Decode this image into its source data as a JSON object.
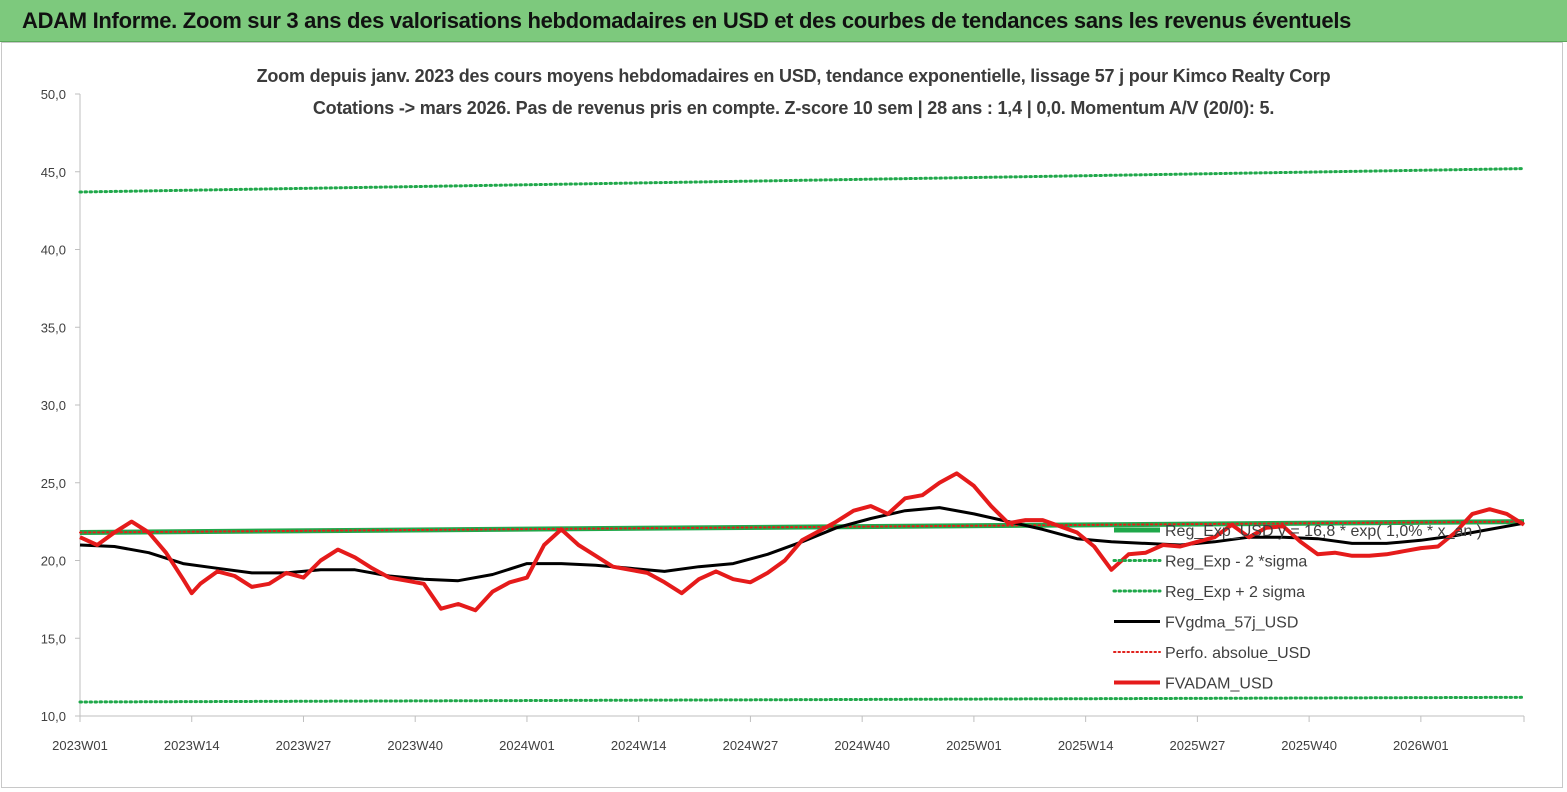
{
  "banner": {
    "title": "ADAM Informe. Zoom sur 3 ans des valorisations hebdomadaires en USD et des courbes de tendances sans les revenus éventuels"
  },
  "colors": {
    "banner_bg": "#7dc97d",
    "reg_exp": "#1fa84a",
    "band": "#1fa84a",
    "fvgdma": "#000000",
    "perfo": "#e0201b",
    "fvadam": "#e51b1b"
  },
  "chart_data": {
    "type": "line",
    "title": "Zoom depuis janv. 2023 des cours moyens hebdomadaires en USD, tendance exponentielle, lissage 57 j pour Kimco Realty Corp",
    "subtitle": "Cotations -> mars 2026. Pas de revenus pris en compte. Z-score 10 sem  | 28 ans : 1,4 | 0,0. Momentum A/V (20/0): 5.",
    "xlabel": "",
    "ylabel": "",
    "ylim": [
      10,
      50
    ],
    "yticks": [
      "10,0",
      "15,0",
      "20,0",
      "25,0",
      "30,0",
      "35,0",
      "40,0",
      "45,0",
      "50,0"
    ],
    "x_range_weeks": [
      0,
      168
    ],
    "xticks": [
      {
        "label": "2023W01",
        "week": 0
      },
      {
        "label": "2023W14",
        "week": 13
      },
      {
        "label": "2023W27",
        "week": 26
      },
      {
        "label": "2023W40",
        "week": 39
      },
      {
        "label": "2024W01",
        "week": 52
      },
      {
        "label": "2024W14",
        "week": 65
      },
      {
        "label": "2024W27",
        "week": 78
      },
      {
        "label": "2024W40",
        "week": 91
      },
      {
        "label": "2025W01",
        "week": 104
      },
      {
        "label": "2025W14",
        "week": 117
      },
      {
        "label": "2025W27",
        "week": 130
      },
      {
        "label": "2025W40",
        "week": 143
      },
      {
        "label": "2026W01",
        "week": 156
      }
    ],
    "grid": false,
    "legend_position": "right",
    "series": [
      {
        "name": "Reg_Exp_USD y = 16,8 * exp( 1,0% * x_an )",
        "style": "solid-thick",
        "weeks": [
          0,
          168
        ],
        "values": [
          21.8,
          22.5
        ]
      },
      {
        "name": "Reg_Exp - 2 *sigma",
        "style": "dotted",
        "weeks": [
          0,
          168
        ],
        "values": [
          10.9,
          11.2
        ]
      },
      {
        "name": "Reg_Exp + 2 sigma",
        "style": "dotted",
        "weeks": [
          0,
          168
        ],
        "values": [
          43.7,
          45.2
        ]
      },
      {
        "name": "FVgdma_57j_USD",
        "style": "solid",
        "weeks": [
          0,
          4,
          8,
          12,
          16,
          20,
          24,
          28,
          32,
          36,
          40,
          44,
          48,
          52,
          56,
          60,
          64,
          68,
          72,
          76,
          80,
          84,
          88,
          92,
          96,
          100,
          104,
          108,
          112,
          116,
          120,
          124,
          128,
          132,
          136,
          140,
          144,
          148,
          152,
          156,
          160,
          164,
          168
        ],
        "values": [
          21.0,
          20.9,
          20.5,
          19.8,
          19.5,
          19.2,
          19.2,
          19.4,
          19.4,
          19.0,
          18.8,
          18.7,
          19.1,
          19.8,
          19.8,
          19.7,
          19.5,
          19.3,
          19.6,
          19.8,
          20.4,
          21.2,
          22.1,
          22.7,
          23.2,
          23.4,
          23.0,
          22.5,
          22.0,
          21.4,
          21.2,
          21.1,
          21.0,
          21.2,
          21.5,
          21.5,
          21.4,
          21.1,
          21.1,
          21.3,
          21.6,
          22.0,
          22.4
        ]
      },
      {
        "name": "Perfo. absolue_USD",
        "style": "dotted",
        "weeks": [
          0,
          168
        ],
        "values": [
          21.8,
          22.5
        ]
      },
      {
        "name": "FVADAM_USD",
        "style": "solid-thick",
        "weeks": [
          0,
          2,
          4,
          6,
          8,
          10,
          12,
          13,
          14,
          16,
          18,
          20,
          22,
          24,
          26,
          28,
          30,
          32,
          34,
          36,
          38,
          40,
          42,
          44,
          46,
          48,
          50,
          52,
          54,
          56,
          58,
          60,
          62,
          64,
          66,
          68,
          70,
          72,
          74,
          76,
          78,
          80,
          82,
          84,
          86,
          88,
          90,
          92,
          94,
          96,
          98,
          100,
          102,
          104,
          106,
          108,
          110,
          112,
          114,
          116,
          118,
          120,
          122,
          124,
          126,
          128,
          130,
          132,
          134,
          136,
          138,
          140,
          142,
          144,
          146,
          148,
          150,
          152,
          154,
          156,
          158,
          160,
          162,
          164,
          166,
          168
        ],
        "values": [
          21.5,
          21.0,
          21.8,
          22.5,
          21.8,
          20.5,
          18.8,
          17.9,
          18.5,
          19.3,
          19.0,
          18.3,
          18.5,
          19.2,
          18.9,
          20.0,
          20.7,
          20.2,
          19.5,
          18.9,
          18.7,
          18.5,
          16.9,
          17.2,
          16.8,
          18.0,
          18.6,
          18.9,
          21.0,
          22.0,
          21.0,
          20.3,
          19.6,
          19.4,
          19.2,
          18.6,
          17.9,
          18.8,
          19.3,
          18.8,
          18.6,
          19.2,
          20.0,
          21.3,
          21.9,
          22.5,
          23.2,
          23.5,
          23.0,
          24.0,
          24.2,
          25.0,
          25.6,
          24.8,
          23.5,
          22.4,
          22.6,
          22.6,
          22.2,
          21.8,
          20.9,
          19.4,
          20.4,
          20.5,
          21.0,
          20.9,
          21.2,
          21.5,
          22.3,
          21.5,
          22.1,
          22.2,
          21.2,
          20.4,
          20.5,
          20.3,
          20.3,
          20.4,
          20.6,
          20.8,
          20.9,
          21.8,
          23.0,
          23.3,
          23.0,
          22.3
        ]
      }
    ]
  }
}
